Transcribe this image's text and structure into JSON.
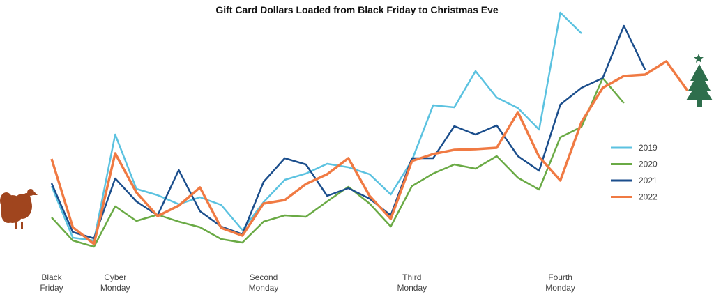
{
  "chart_data": {
    "type": "line",
    "title": "Gift Card Dollars Loaded from Black Friday to Christmas Eve",
    "xlabel": "",
    "ylabel": "",
    "grid": false,
    "legend_position": "right",
    "x_tick_labels": [
      {
        "index": 0,
        "lines": [
          "Black",
          "Friday"
        ]
      },
      {
        "index": 3,
        "lines": [
          "Cyber",
          "Monday"
        ]
      },
      {
        "index": 10,
        "lines": [
          "Second",
          "Monday"
        ]
      },
      {
        "index": 17,
        "lines": [
          "Third",
          "Monday"
        ]
      },
      {
        "index": 24,
        "lines": [
          "Fourth",
          "Monday"
        ]
      }
    ],
    "series": [
      {
        "name": "2019",
        "color": "#5bc2e0",
        "values": [
          267,
          341,
          345,
          193,
          271,
          280,
          293,
          283,
          294,
          330,
          290,
          258,
          249,
          235,
          240,
          250,
          279,
          230,
          151,
          154,
          102,
          140,
          155,
          186,
          18,
          48
        ]
      },
      {
        "name": "2020",
        "color": "#6aaa45",
        "values": [
          312,
          345,
          354,
          296,
          317,
          308,
          318,
          326,
          343,
          348,
          318,
          309,
          311,
          289,
          268,
          292,
          325,
          267,
          249,
          236,
          242,
          224,
          255,
          272,
          197,
          182,
          112,
          148
        ]
      },
      {
        "name": "2021",
        "color": "#1b4e8c",
        "values": [
          263,
          333,
          342,
          256,
          289,
          309,
          244,
          303,
          325,
          336,
          261,
          227,
          236,
          281,
          270,
          285,
          309,
          227,
          227,
          181,
          193,
          180,
          224,
          245,
          150,
          126,
          112,
          37,
          100
        ]
      },
      {
        "name": "2022",
        "color": "#f07a43",
        "values": [
          228,
          326,
          350,
          220,
          276,
          310,
          295,
          269,
          327,
          338,
          292,
          287,
          264,
          250,
          227,
          281,
          314,
          231,
          221,
          215,
          214,
          212,
          161,
          225,
          259,
          175,
          126,
          109,
          107,
          88,
          130
        ]
      }
    ],
    "annotations": [
      {
        "name": "turkey",
        "color": "#a0451e"
      },
      {
        "name": "christmas-tree",
        "color": "#2e6e4c"
      }
    ]
  }
}
